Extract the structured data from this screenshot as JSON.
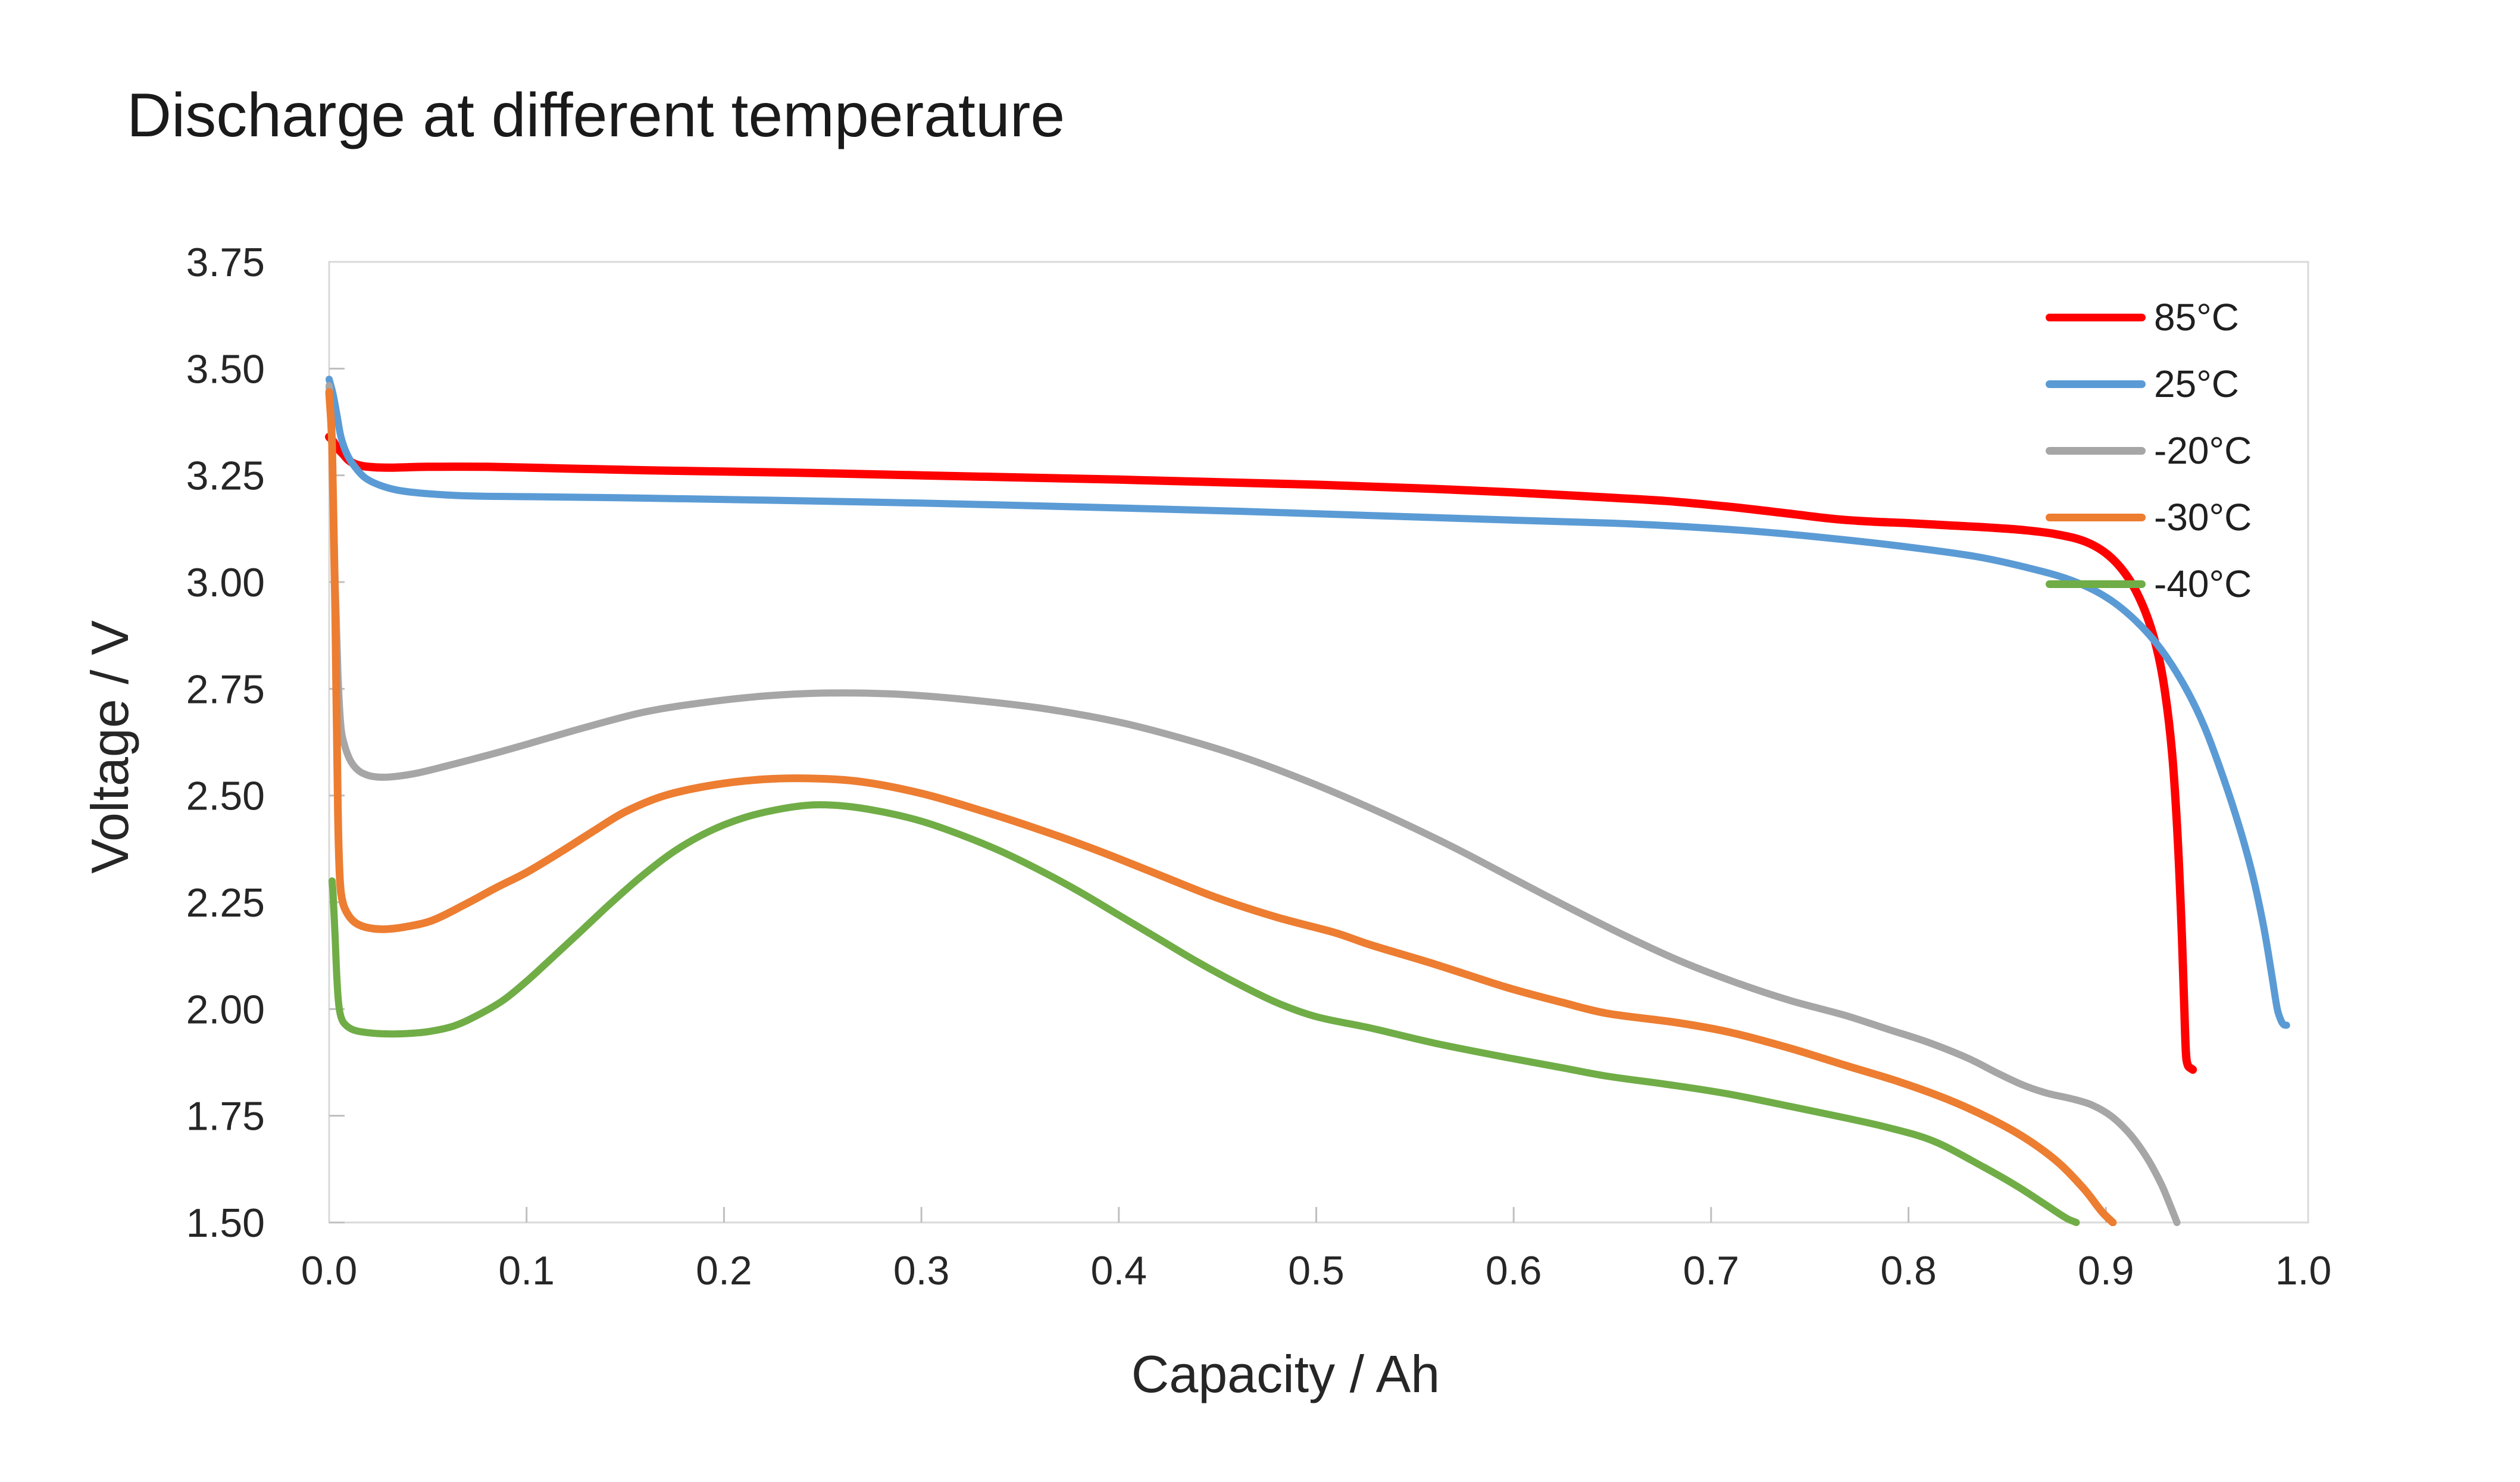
{
  "page": {
    "background": "#ffffff"
  },
  "chart_data": {
    "type": "line",
    "title": "Discharge at different temperature",
    "xlabel": "Capacity / Ah",
    "ylabel": "Voltage / V",
    "xlim": [
      0.0,
      1.0
    ],
    "ylim": [
      1.5,
      3.75
    ],
    "grid": false,
    "legend_position": "top-right-inside",
    "xticks": [
      0.0,
      0.1,
      0.2,
      0.3,
      0.4,
      0.5,
      0.6,
      0.7,
      0.8,
      0.9,
      1.0
    ],
    "xticklabels": [
      "0.0",
      "0.1",
      "0.2",
      "0.3",
      "0.4",
      "0.5",
      "0.6",
      "0.7",
      "0.8",
      "0.9",
      "1.0"
    ],
    "yticks": [
      3.75,
      3.5,
      3.25,
      3.0,
      2.75,
      2.5,
      2.25,
      2.0,
      1.75,
      1.5
    ],
    "yticklabels": [
      "3.75",
      "3.50",
      "3.25",
      "3.00",
      "2.75",
      "2.50",
      "2.25",
      "2.00",
      "1.75",
      "1.50"
    ],
    "axis_color": "#bfbfbf",
    "border_color": "#d9d9d9",
    "series": [
      {
        "name": "85°C",
        "color": "#ff0000",
        "stroke_width": 14,
        "points": [
          [
            0.0,
            3.34
          ],
          [
            0.002,
            3.33
          ],
          [
            0.004,
            3.315
          ],
          [
            0.007,
            3.3
          ],
          [
            0.01,
            3.285
          ],
          [
            0.014,
            3.275
          ],
          [
            0.02,
            3.27
          ],
          [
            0.03,
            3.268
          ],
          [
            0.05,
            3.27
          ],
          [
            0.08,
            3.27
          ],
          [
            0.12,
            3.266
          ],
          [
            0.16,
            3.262
          ],
          [
            0.2,
            3.259
          ],
          [
            0.25,
            3.255
          ],
          [
            0.3,
            3.25
          ],
          [
            0.35,
            3.245
          ],
          [
            0.4,
            3.24
          ],
          [
            0.45,
            3.234
          ],
          [
            0.5,
            3.228
          ],
          [
            0.55,
            3.22
          ],
          [
            0.6,
            3.21
          ],
          [
            0.64,
            3.2
          ],
          [
            0.677,
            3.19
          ],
          [
            0.71,
            3.176
          ],
          [
            0.74,
            3.16
          ],
          [
            0.762,
            3.148
          ],
          [
            0.78,
            3.142
          ],
          [
            0.8,
            3.138
          ],
          [
            0.82,
            3.133
          ],
          [
            0.84,
            3.128
          ],
          [
            0.858,
            3.122
          ],
          [
            0.875,
            3.112
          ],
          [
            0.89,
            3.094
          ],
          [
            0.902,
            3.06
          ],
          [
            0.912,
            3.005
          ],
          [
            0.92,
            2.93
          ],
          [
            0.926,
            2.84
          ],
          [
            0.93,
            2.74
          ],
          [
            0.9335,
            2.6
          ],
          [
            0.936,
            2.43
          ],
          [
            0.938,
            2.23
          ],
          [
            0.9395,
            2.03
          ],
          [
            0.9405,
            1.9
          ],
          [
            0.9415,
            1.868
          ],
          [
            0.944,
            1.858
          ]
        ]
      },
      {
        "name": "25°C",
        "color": "#5b9bd5",
        "stroke_width": 12,
        "points": [
          [
            0.0,
            3.475
          ],
          [
            0.002,
            3.44
          ],
          [
            0.004,
            3.39
          ],
          [
            0.006,
            3.34
          ],
          [
            0.009,
            3.3
          ],
          [
            0.013,
            3.27
          ],
          [
            0.018,
            3.245
          ],
          [
            0.025,
            3.228
          ],
          [
            0.035,
            3.215
          ],
          [
            0.05,
            3.207
          ],
          [
            0.07,
            3.202
          ],
          [
            0.1,
            3.2
          ],
          [
            0.156,
            3.197
          ],
          [
            0.22,
            3.192
          ],
          [
            0.3,
            3.185
          ],
          [
            0.38,
            3.176
          ],
          [
            0.46,
            3.166
          ],
          [
            0.54,
            3.154
          ],
          [
            0.6,
            3.145
          ],
          [
            0.65,
            3.138
          ],
          [
            0.69,
            3.129
          ],
          [
            0.73,
            3.116
          ],
          [
            0.77,
            3.098
          ],
          [
            0.8,
            3.082
          ],
          [
            0.834,
            3.06
          ],
          [
            0.86,
            3.034
          ],
          [
            0.882,
            3.005
          ],
          [
            0.9,
            2.965
          ],
          [
            0.915,
            2.91
          ],
          [
            0.928,
            2.842
          ],
          [
            0.94,
            2.755
          ],
          [
            0.95,
            2.66
          ],
          [
            0.96,
            2.535
          ],
          [
            0.968,
            2.42
          ],
          [
            0.9745,
            2.31
          ],
          [
            0.98,
            2.19
          ],
          [
            0.984,
            2.08
          ],
          [
            0.9868,
            2.0
          ],
          [
            0.9888,
            1.972
          ],
          [
            0.9902,
            1.963
          ],
          [
            0.9915,
            1.962
          ]
        ]
      },
      {
        "name": "-20°C",
        "color": "#a6a6a6",
        "stroke_width": 12,
        "points": [
          [
            0.0,
            3.46
          ],
          [
            0.0015,
            3.3
          ],
          [
            0.003,
            3.0
          ],
          [
            0.0045,
            2.78
          ],
          [
            0.006,
            2.66
          ],
          [
            0.008,
            2.615
          ],
          [
            0.011,
            2.58
          ],
          [
            0.015,
            2.558
          ],
          [
            0.02,
            2.547
          ],
          [
            0.026,
            2.543
          ],
          [
            0.034,
            2.545
          ],
          [
            0.045,
            2.553
          ],
          [
            0.06,
            2.57
          ],
          [
            0.08,
            2.594
          ],
          [
            0.1,
            2.62
          ],
          [
            0.13,
            2.66
          ],
          [
            0.16,
            2.696
          ],
          [
            0.19,
            2.718
          ],
          [
            0.22,
            2.733
          ],
          [
            0.25,
            2.74
          ],
          [
            0.285,
            2.738
          ],
          [
            0.32,
            2.726
          ],
          [
            0.36,
            2.705
          ],
          [
            0.4,
            2.672
          ],
          [
            0.435,
            2.63
          ],
          [
            0.466,
            2.585
          ],
          [
            0.5,
            2.525
          ],
          [
            0.535,
            2.455
          ],
          [
            0.569,
            2.38
          ],
          [
            0.6,
            2.305
          ],
          [
            0.627,
            2.24
          ],
          [
            0.655,
            2.175
          ],
          [
            0.683,
            2.115
          ],
          [
            0.712,
            2.063
          ],
          [
            0.74,
            2.02
          ],
          [
            0.768,
            1.985
          ],
          [
            0.79,
            1.952
          ],
          [
            0.81,
            1.922
          ],
          [
            0.83,
            1.885
          ],
          [
            0.845,
            1.85
          ],
          [
            0.858,
            1.822
          ],
          [
            0.87,
            1.803
          ],
          [
            0.8825,
            1.79
          ],
          [
            0.893,
            1.775
          ],
          [
            0.903,
            1.748
          ],
          [
            0.9125,
            1.705
          ],
          [
            0.921,
            1.65
          ],
          [
            0.928,
            1.59
          ],
          [
            0.933,
            1.535
          ],
          [
            0.936,
            1.5
          ]
        ]
      },
      {
        "name": "-30°C",
        "color": "#ed7d31",
        "stroke_width": 13,
        "points": [
          [
            0.0,
            3.445
          ],
          [
            0.0015,
            3.32
          ],
          [
            0.003,
            2.95
          ],
          [
            0.0045,
            2.45
          ],
          [
            0.0055,
            2.3
          ],
          [
            0.007,
            2.248
          ],
          [
            0.01,
            2.218
          ],
          [
            0.014,
            2.2
          ],
          [
            0.02,
            2.19
          ],
          [
            0.028,
            2.187
          ],
          [
            0.038,
            2.192
          ],
          [
            0.052,
            2.207
          ],
          [
            0.068,
            2.243
          ],
          [
            0.085,
            2.285
          ],
          [
            0.1,
            2.32
          ],
          [
            0.118,
            2.37
          ],
          [
            0.135,
            2.42
          ],
          [
            0.15,
            2.462
          ],
          [
            0.17,
            2.5
          ],
          [
            0.195,
            2.525
          ],
          [
            0.22,
            2.538
          ],
          [
            0.245,
            2.54
          ],
          [
            0.27,
            2.532
          ],
          [
            0.3,
            2.505
          ],
          [
            0.33,
            2.465
          ],
          [
            0.36,
            2.42
          ],
          [
            0.39,
            2.37
          ],
          [
            0.42,
            2.315
          ],
          [
            0.45,
            2.26
          ],
          [
            0.48,
            2.215
          ],
          [
            0.51,
            2.178
          ],
          [
            0.527,
            2.151
          ],
          [
            0.56,
            2.105
          ],
          [
            0.597,
            2.05
          ],
          [
            0.625,
            2.015
          ],
          [
            0.647,
            1.99
          ],
          [
            0.683,
            1.968
          ],
          [
            0.71,
            1.945
          ],
          [
            0.74,
            1.908
          ],
          [
            0.768,
            1.868
          ],
          [
            0.795,
            1.83
          ],
          [
            0.82,
            1.788
          ],
          [
            0.842,
            1.742
          ],
          [
            0.86,
            1.695
          ],
          [
            0.876,
            1.64
          ],
          [
            0.889,
            1.578
          ],
          [
            0.898,
            1.525
          ],
          [
            0.9035,
            1.5
          ]
        ]
      },
      {
        "name": "-40°C",
        "color": "#70ad47",
        "stroke_width": 12,
        "points": [
          [
            0.0015,
            2.3
          ],
          [
            0.002,
            2.27
          ],
          [
            0.003,
            2.17
          ],
          [
            0.004,
            2.065
          ],
          [
            0.005,
            2.005
          ],
          [
            0.0065,
            1.975
          ],
          [
            0.009,
            1.96
          ],
          [
            0.013,
            1.95
          ],
          [
            0.019,
            1.945
          ],
          [
            0.027,
            1.942
          ],
          [
            0.037,
            1.942
          ],
          [
            0.05,
            1.947
          ],
          [
            0.063,
            1.96
          ],
          [
            0.075,
            1.985
          ],
          [
            0.088,
            2.02
          ],
          [
            0.1,
            2.065
          ],
          [
            0.113,
            2.12
          ],
          [
            0.127,
            2.18
          ],
          [
            0.142,
            2.245
          ],
          [
            0.158,
            2.31
          ],
          [
            0.175,
            2.37
          ],
          [
            0.192,
            2.415
          ],
          [
            0.21,
            2.448
          ],
          [
            0.228,
            2.468
          ],
          [
            0.245,
            2.478
          ],
          [
            0.262,
            2.475
          ],
          [
            0.28,
            2.462
          ],
          [
            0.3,
            2.44
          ],
          [
            0.32,
            2.408
          ],
          [
            0.34,
            2.37
          ],
          [
            0.36,
            2.325
          ],
          [
            0.38,
            2.275
          ],
          [
            0.4,
            2.22
          ],
          [
            0.42,
            2.165
          ],
          [
            0.44,
            2.11
          ],
          [
            0.46,
            2.06
          ],
          [
            0.48,
            2.015
          ],
          [
            0.5,
            1.982
          ],
          [
            0.527,
            1.956
          ],
          [
            0.56,
            1.92
          ],
          [
            0.597,
            1.886
          ],
          [
            0.625,
            1.862
          ],
          [
            0.647,
            1.843
          ],
          [
            0.683,
            1.82
          ],
          [
            0.71,
            1.8
          ],
          [
            0.74,
            1.772
          ],
          [
            0.768,
            1.745
          ],
          [
            0.79,
            1.722
          ],
          [
            0.813,
            1.69
          ],
          [
            0.838,
            1.63
          ],
          [
            0.855,
            1.585
          ],
          [
            0.87,
            1.54
          ],
          [
            0.88,
            1.51
          ],
          [
            0.885,
            1.5
          ]
        ]
      }
    ]
  }
}
